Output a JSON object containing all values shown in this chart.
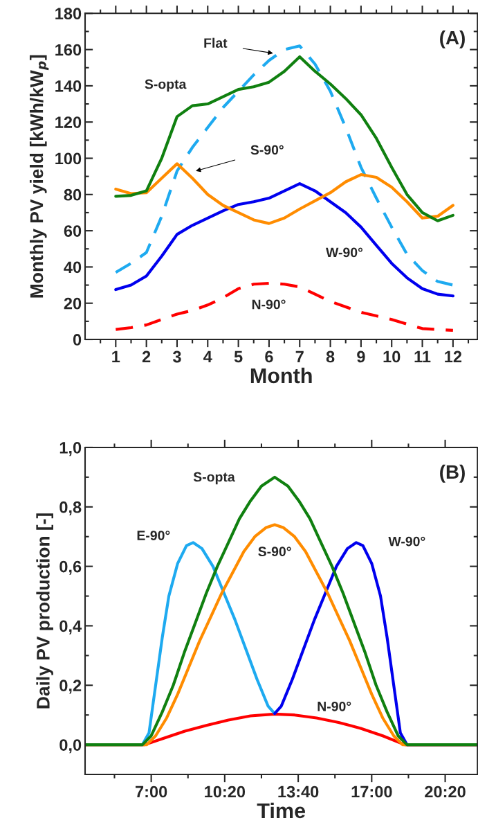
{
  "chart_data": [
    {
      "type": "line",
      "xlabel": "Month",
      "ylabel": "Monthly PV yield [kWh/kW$_{p}$]",
      "annotations": [
        "(A)"
      ],
      "x": [
        1,
        1.5,
        2,
        2.5,
        3,
        3.5,
        4,
        4.5,
        5,
        5.5,
        6,
        6.5,
        7,
        7.5,
        8,
        8.5,
        9,
        9.5,
        10,
        10.5,
        11,
        11.5,
        12
      ],
      "xlim": [
        0,
        12.8
      ],
      "xticks": [
        {
          "value": 0.5,
          "label": null
        },
        1,
        {
          "value": 1.5,
          "label": null
        },
        2,
        {
          "value": 2.5,
          "label": null
        },
        3,
        {
          "value": 3.5,
          "label": null
        },
        4,
        {
          "value": 4.5,
          "label": null
        },
        5,
        {
          "value": 5.5,
          "label": null
        },
        6,
        {
          "value": 6.5,
          "label": null
        },
        7,
        {
          "value": 7.5,
          "label": null
        },
        8,
        {
          "value": 8.5,
          "label": null
        },
        9,
        {
          "value": 9.5,
          "label": null
        },
        10,
        {
          "value": 10.5,
          "label": null
        },
        11,
        {
          "value": 11.5,
          "label": null
        },
        12,
        {
          "value": 12.5,
          "label": null
        }
      ],
      "ylim": [
        0,
        180
      ],
      "yticks": [
        0,
        {
          "value": 10,
          "label": null
        },
        20,
        {
          "value": 30,
          "label": null
        },
        40,
        {
          "value": 50,
          "label": null
        },
        60,
        {
          "value": 70,
          "label": null
        },
        80,
        {
          "value": 90,
          "label": null
        },
        100,
        {
          "value": 110,
          "label": null
        },
        120,
        {
          "value": 130,
          "label": null
        },
        140,
        {
          "value": 150,
          "label": null
        },
        160,
        {
          "value": 170,
          "label": null
        },
        180
      ],
      "grid": false,
      "legend": false,
      "series": [
        {
          "name": "N-90°",
          "color": "#ff0000",
          "line_style": "dashed",
          "values": [
            5.5,
            6.5,
            8,
            11,
            14,
            16,
            19,
            23,
            28,
            30.5,
            31,
            30.5,
            29,
            25,
            21,
            18,
            15,
            13,
            11,
            8.5,
            6,
            5.5,
            5
          ]
        },
        {
          "name": "Flat",
          "color": "#1eaaf0",
          "line_style": "dashed",
          "values": [
            37,
            42,
            48,
            68,
            93,
            106,
            117,
            128,
            137,
            146,
            154,
            160,
            162,
            152,
            137,
            117,
            95,
            78,
            62,
            47,
            38,
            32,
            30
          ]
        },
        {
          "name": "W-90°",
          "color": "#0000ee",
          "line_style": "solid",
          "values": [
            27.5,
            30,
            35,
            46,
            58,
            63,
            67,
            71,
            74.5,
            76,
            78,
            82,
            86,
            82,
            76,
            70,
            62,
            52,
            42,
            34,
            28,
            25,
            24
          ]
        },
        {
          "name": "S-90°",
          "color": "#ff8c00",
          "line_style": "solid",
          "values": [
            83,
            80.5,
            81,
            89,
            97,
            89,
            80,
            74,
            70,
            66,
            64,
            67,
            72,
            76.5,
            81,
            87,
            91,
            89.5,
            84,
            76,
            67,
            68,
            74
          ]
        },
        {
          "name": "S-opta",
          "color": "#108010",
          "line_style": "solid",
          "values": [
            79,
            79.5,
            82,
            100,
            123,
            129,
            130,
            134,
            138,
            139.5,
            142,
            148,
            156,
            148,
            141,
            133,
            124,
            111,
            95,
            80,
            70,
            65.5,
            68.5
          ]
        }
      ]
    },
    {
      "type": "line",
      "xlabel": "Time",
      "ylabel": "Daily PV production [-]",
      "annotations": [
        "(B)"
      ],
      "xlim": [
        4,
        21.8
      ],
      "xticks": [
        {
          "value": 5.333,
          "label": null
        },
        {
          "value": 7,
          "label": "7:00"
        },
        {
          "value": 8.667,
          "label": null
        },
        {
          "value": 10.333,
          "label": "10:20"
        },
        {
          "value": 12,
          "label": null
        },
        {
          "value": 13.667,
          "label": "13:40"
        },
        {
          "value": 15.333,
          "label": null
        },
        {
          "value": 17,
          "label": "17:00"
        },
        {
          "value": 18.667,
          "label": null
        },
        {
          "value": 20.333,
          "label": "20:20"
        }
      ],
      "ylim": [
        -0.1,
        1.0
      ],
      "yticks": [
        {
          "value": 0,
          "label": "0,0"
        },
        {
          "value": 0.1,
          "label": null
        },
        {
          "value": 0.2,
          "label": "0,2"
        },
        {
          "value": 0.3,
          "label": null
        },
        {
          "value": 0.4,
          "label": "0,4"
        },
        {
          "value": 0.5,
          "label": null
        },
        {
          "value": 0.6,
          "label": "0,6"
        },
        {
          "value": 0.7,
          "label": null
        },
        {
          "value": 0.8,
          "label": "0,8"
        },
        {
          "value": 0.9,
          "label": null
        },
        {
          "value": 1.0,
          "label": "1,0"
        }
      ],
      "grid": false,
      "legend": false,
      "series": [
        {
          "name": "N-90°",
          "color": "#ff0000",
          "line_style": "solid",
          "x": [
            4,
            6.7,
            7.5,
            8.5,
            9.5,
            10.5,
            11.5,
            12.6,
            13.5,
            14.5,
            15.5,
            16.5,
            17.5,
            18.5,
            21.8
          ],
          "values": [
            0,
            0,
            0.02,
            0.045,
            0.065,
            0.083,
            0.097,
            0.103,
            0.1,
            0.09,
            0.075,
            0.055,
            0.03,
            0,
            0
          ]
        },
        {
          "name": "E-90°",
          "color": "#1eaaf0",
          "line_style": "solid",
          "x": [
            4,
            6.6,
            6.9,
            7.2,
            7.5,
            7.8,
            8.2,
            8.6,
            8.9,
            9.3,
            9.8,
            10.3,
            10.8,
            11.3,
            11.8,
            12.3,
            12.6
          ],
          "values": [
            0,
            0,
            0.04,
            0.2,
            0.36,
            0.5,
            0.61,
            0.67,
            0.68,
            0.66,
            0.6,
            0.51,
            0.42,
            0.32,
            0.22,
            0.13,
            0.105
          ]
        },
        {
          "name": "W-90°",
          "color": "#0000ee",
          "line_style": "solid",
          "x": [
            12.6,
            12.9,
            13.4,
            13.9,
            14.4,
            14.9,
            15.4,
            15.9,
            16.3,
            16.6,
            17,
            17.4,
            17.7,
            18,
            18.3,
            18.6,
            21.8
          ],
          "values": [
            0.105,
            0.13,
            0.22,
            0.32,
            0.42,
            0.51,
            0.6,
            0.66,
            0.68,
            0.67,
            0.61,
            0.5,
            0.36,
            0.2,
            0.04,
            0,
            0
          ]
        },
        {
          "name": "S-90°",
          "color": "#ff8c00",
          "line_style": "solid",
          "x": [
            4,
            6.8,
            7.2,
            7.7,
            8.2,
            8.7,
            9.2,
            9.7,
            10.2,
            10.7,
            11.2,
            11.7,
            12.2,
            12.6,
            13,
            13.5,
            14,
            14.5,
            15,
            15.5,
            16,
            16.5,
            17,
            17.5,
            18,
            18.4,
            21.8
          ],
          "values": [
            0,
            0,
            0.03,
            0.09,
            0.17,
            0.26,
            0.35,
            0.43,
            0.51,
            0.58,
            0.65,
            0.7,
            0.73,
            0.74,
            0.73,
            0.7,
            0.65,
            0.58,
            0.51,
            0.43,
            0.35,
            0.26,
            0.17,
            0.09,
            0.03,
            0,
            0
          ]
        },
        {
          "name": "S-opta",
          "color": "#108010",
          "line_style": "solid",
          "x": [
            4,
            6.6,
            7,
            7.5,
            8,
            8.5,
            9,
            9.5,
            10,
            10.5,
            11,
            11.5,
            12,
            12.6,
            13.2,
            13.7,
            14.2,
            14.7,
            15.2,
            15.7,
            16.2,
            16.7,
            17.2,
            17.7,
            18.2,
            18.6,
            21.8
          ],
          "values": [
            0,
            0,
            0.03,
            0.11,
            0.2,
            0.31,
            0.41,
            0.51,
            0.6,
            0.68,
            0.76,
            0.82,
            0.87,
            0.9,
            0.87,
            0.82,
            0.76,
            0.68,
            0.6,
            0.51,
            0.41,
            0.31,
            0.2,
            0.11,
            0.03,
            0,
            0
          ]
        }
      ]
    }
  ]
}
